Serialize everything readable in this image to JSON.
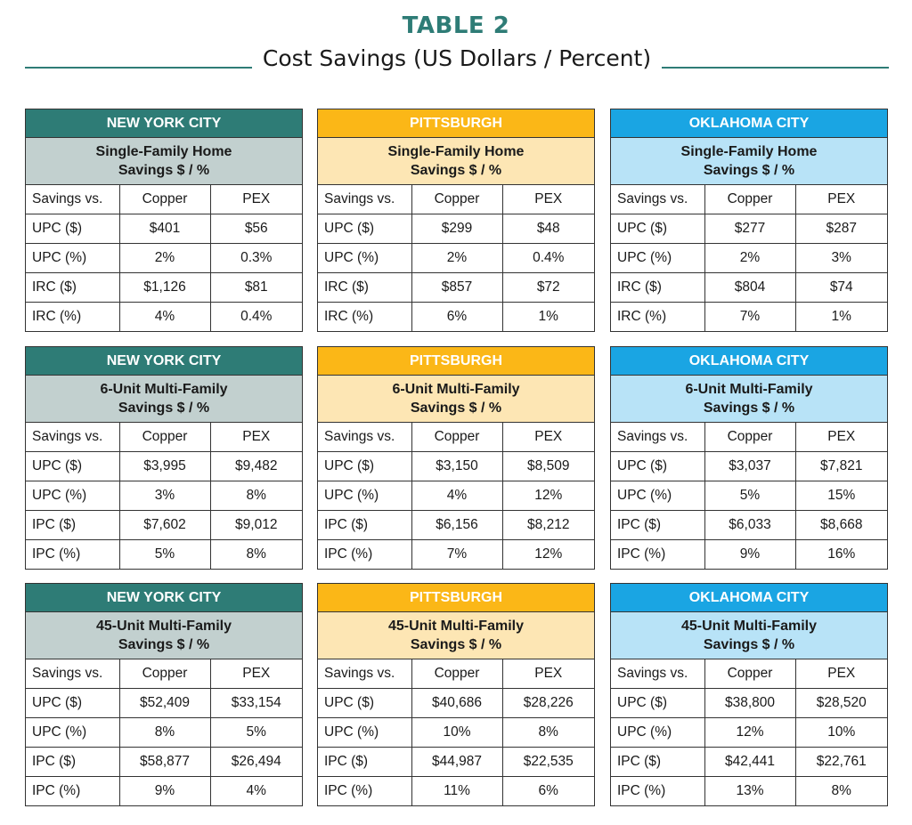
{
  "header": {
    "title": "TABLE 2",
    "subtitle": "Cost Savings (US Dollars / Percent)"
  },
  "colors": {
    "new_york_city": "#2e7c76",
    "pittsburgh": "#fbb717",
    "oklahoma_city": "#1aa5e3"
  },
  "panels": [
    {
      "city": "NEW YORK CITY",
      "building": "Single-Family Home",
      "metric": "Savings $ / %",
      "columns": [
        "Savings vs.",
        "Copper",
        "PEX"
      ],
      "rows": [
        [
          "UPC ($)",
          "$401",
          "$56"
        ],
        [
          "UPC (%)",
          "2%",
          "0.3%"
        ],
        [
          "IRC ($)",
          "$1,126",
          "$81"
        ],
        [
          "IRC (%)",
          "4%",
          "0.4%"
        ]
      ]
    },
    {
      "city": "PITTSBURGH",
      "building": "Single-Family Home",
      "metric": "Savings $ / %",
      "columns": [
        "Savings vs.",
        "Copper",
        "PEX"
      ],
      "rows": [
        [
          "UPC ($)",
          "$299",
          "$48"
        ],
        [
          "UPC (%)",
          "2%",
          "0.4%"
        ],
        [
          "IRC ($)",
          "$857",
          "$72"
        ],
        [
          "IRC (%)",
          "6%",
          "1%"
        ]
      ]
    },
    {
      "city": "OKLAHOMA CITY",
      "building": "Single-Family Home",
      "metric": "Savings $ / %",
      "columns": [
        "Savings vs.",
        "Copper",
        "PEX"
      ],
      "rows": [
        [
          "UPC ($)",
          "$277",
          "$287"
        ],
        [
          "UPC (%)",
          "2%",
          "3%"
        ],
        [
          "IRC ($)",
          "$804",
          "$74"
        ],
        [
          "IRC (%)",
          "7%",
          "1%"
        ]
      ]
    },
    {
      "city": "NEW YORK CITY",
      "building": "6-Unit Multi-Family",
      "metric": "Savings $ / %",
      "columns": [
        "Savings vs.",
        "Copper",
        "PEX"
      ],
      "rows": [
        [
          "UPC ($)",
          "$3,995",
          "$9,482"
        ],
        [
          "UPC (%)",
          "3%",
          "8%"
        ],
        [
          "IPC ($)",
          "$7,602",
          "$9,012"
        ],
        [
          "IPC (%)",
          "5%",
          "8%"
        ]
      ]
    },
    {
      "city": "PITTSBURGH",
      "building": "6-Unit Multi-Family",
      "metric": "Savings $ / %",
      "columns": [
        "Savings vs.",
        "Copper",
        "PEX"
      ],
      "rows": [
        [
          "UPC ($)",
          "$3,150",
          "$8,509"
        ],
        [
          "UPC (%)",
          "4%",
          "12%"
        ],
        [
          "IPC ($)",
          "$6,156",
          "$8,212"
        ],
        [
          "IPC (%)",
          "7%",
          "12%"
        ]
      ]
    },
    {
      "city": "OKLAHOMA CITY",
      "building": "6-Unit Multi-Family",
      "metric": "Savings $ / %",
      "columns": [
        "Savings vs.",
        "Copper",
        "PEX"
      ],
      "rows": [
        [
          "UPC ($)",
          "$3,037",
          "$7,821"
        ],
        [
          "UPC (%)",
          "5%",
          "15%"
        ],
        [
          "IPC ($)",
          "$6,033",
          "$8,668"
        ],
        [
          "IPC (%)",
          "9%",
          "16%"
        ]
      ]
    },
    {
      "city": "NEW YORK CITY",
      "building": "45-Unit Multi-Family",
      "metric": "Savings $ / %",
      "columns": [
        "Savings vs.",
        "Copper",
        "PEX"
      ],
      "rows": [
        [
          "UPC ($)",
          "$52,409",
          "$33,154"
        ],
        [
          "UPC (%)",
          "8%",
          "5%"
        ],
        [
          "IPC ($)",
          "$58,877",
          "$26,494"
        ],
        [
          "IPC (%)",
          "9%",
          "4%"
        ]
      ]
    },
    {
      "city": "PITTSBURGH",
      "building": "45-Unit Multi-Family",
      "metric": "Savings $ / %",
      "columns": [
        "Savings vs.",
        "Copper",
        "PEX"
      ],
      "rows": [
        [
          "UPC ($)",
          "$40,686",
          "$28,226"
        ],
        [
          "UPC (%)",
          "10%",
          "8%"
        ],
        [
          "IPC ($)",
          "$44,987",
          "$22,535"
        ],
        [
          "IPC (%)",
          "11%",
          "6%"
        ]
      ]
    },
    {
      "city": "OKLAHOMA CITY",
      "building": "45-Unit Multi-Family",
      "metric": "Savings $ / %",
      "columns": [
        "Savings vs.",
        "Copper",
        "PEX"
      ],
      "rows": [
        [
          "UPC ($)",
          "$38,800",
          "$28,520"
        ],
        [
          "UPC (%)",
          "12%",
          "10%"
        ],
        [
          "IPC ($)",
          "$42,441",
          "$22,761"
        ],
        [
          "IPC (%)",
          "13%",
          "8%"
        ]
      ]
    }
  ]
}
